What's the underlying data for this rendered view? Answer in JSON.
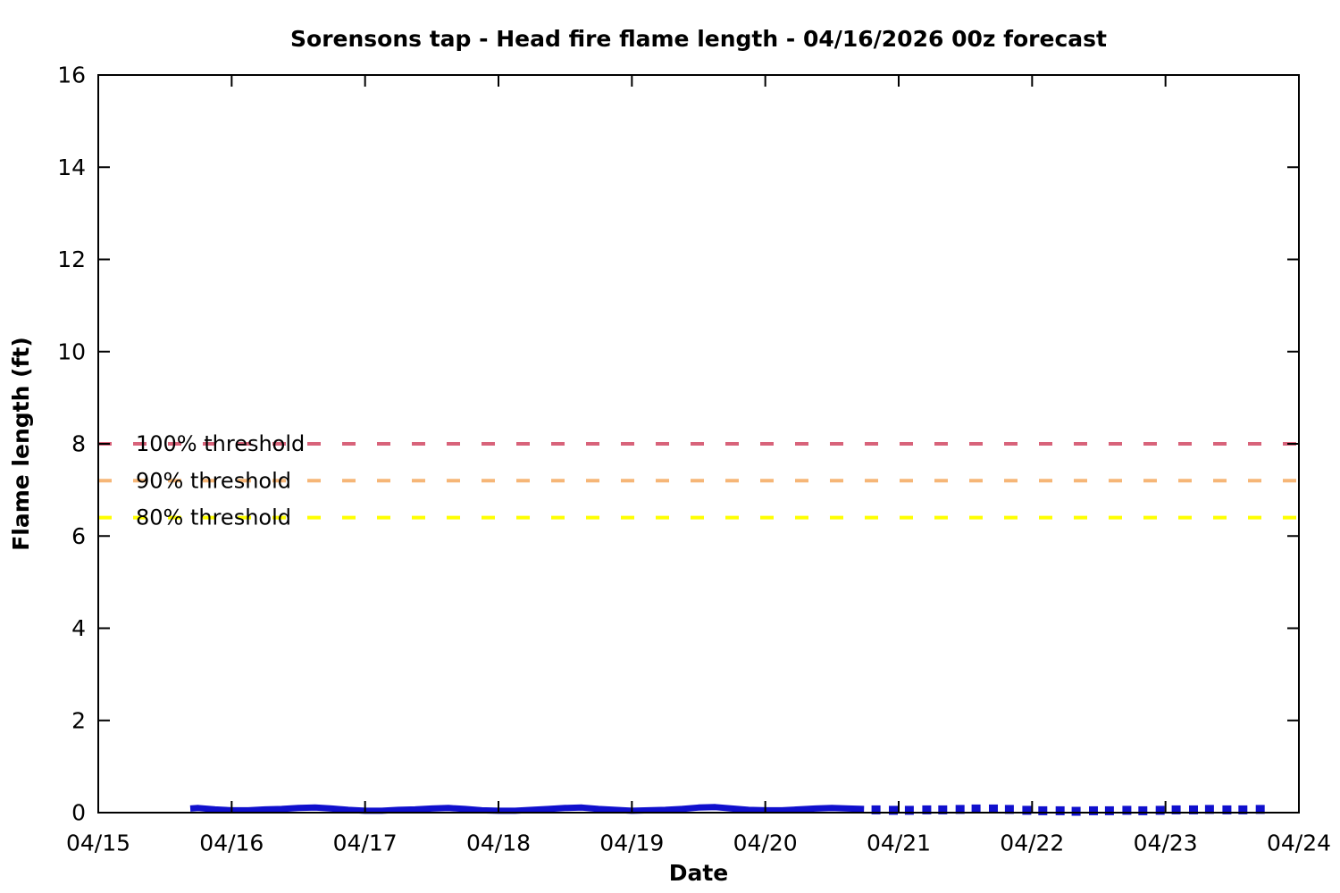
{
  "chart_data": {
    "type": "line",
    "title": "Sorensons tap - Head fire flame length - 04/16/2026 00z forecast",
    "xlabel": "Date",
    "ylabel": "Flame length (ft)",
    "x_tick_labels": [
      "04/15",
      "04/16",
      "04/17",
      "04/18",
      "04/19",
      "04/20",
      "04/21",
      "04/22",
      "04/23",
      "04/24"
    ],
    "x_span_days": 9,
    "x_unit": "days_after_04_15",
    "y_ticks": [
      0,
      2,
      4,
      6,
      8,
      10,
      12,
      14,
      16
    ],
    "ylim": [
      0,
      16
    ],
    "grid": false,
    "legend_position": "inline-left-labels",
    "axis_color": "#000000",
    "thresholds": [
      {
        "label": "100% threshold",
        "value": 8.0,
        "color": "#d8637a"
      },
      {
        "label": "90% threshold",
        "value": 7.2,
        "color": "#f6b677"
      },
      {
        "label": "80% threshold",
        "value": 6.4,
        "color": "#ffff00"
      }
    ],
    "series": [
      {
        "name": "flame-length-forecast-solid",
        "style": "solid-thick-line",
        "color": "#1010cd",
        "line_width": 7,
        "points": [
          [
            0.69,
            0.09
          ],
          [
            0.75,
            0.1
          ],
          [
            0.875,
            0.07
          ],
          [
            1.0,
            0.05
          ],
          [
            1.125,
            0.05
          ],
          [
            1.25,
            0.07
          ],
          [
            1.375,
            0.08
          ],
          [
            1.5,
            0.1
          ],
          [
            1.625,
            0.11
          ],
          [
            1.75,
            0.09
          ],
          [
            1.875,
            0.06
          ],
          [
            2.0,
            0.04
          ],
          [
            2.125,
            0.04
          ],
          [
            2.25,
            0.06
          ],
          [
            2.375,
            0.07
          ],
          [
            2.5,
            0.09
          ],
          [
            2.625,
            0.1
          ],
          [
            2.75,
            0.08
          ],
          [
            2.875,
            0.05
          ],
          [
            3.0,
            0.04
          ],
          [
            3.125,
            0.04
          ],
          [
            3.25,
            0.06
          ],
          [
            3.375,
            0.08
          ],
          [
            3.5,
            0.1
          ],
          [
            3.625,
            0.11
          ],
          [
            3.75,
            0.08
          ],
          [
            3.875,
            0.06
          ],
          [
            4.0,
            0.04
          ],
          [
            4.125,
            0.05
          ],
          [
            4.25,
            0.06
          ],
          [
            4.375,
            0.08
          ],
          [
            4.5,
            0.11
          ],
          [
            4.625,
            0.12
          ],
          [
            4.75,
            0.09
          ],
          [
            4.875,
            0.06
          ],
          [
            5.0,
            0.05
          ],
          [
            5.125,
            0.05
          ],
          [
            5.25,
            0.07
          ],
          [
            5.375,
            0.09
          ],
          [
            5.5,
            0.1
          ],
          [
            5.625,
            0.09
          ],
          [
            5.74,
            0.08
          ]
        ]
      },
      {
        "name": "flame-length-forecast-extended-dots",
        "style": "square-markers",
        "color": "#1010cd",
        "marker_size": 10,
        "points": [
          [
            5.83,
            0.06
          ],
          [
            5.96,
            0.05
          ],
          [
            6.08,
            0.05
          ],
          [
            6.21,
            0.06
          ],
          [
            6.33,
            0.06
          ],
          [
            6.46,
            0.07
          ],
          [
            6.58,
            0.08
          ],
          [
            6.71,
            0.08
          ],
          [
            6.83,
            0.07
          ],
          [
            6.96,
            0.05
          ],
          [
            7.08,
            0.04
          ],
          [
            7.21,
            0.04
          ],
          [
            7.33,
            0.03
          ],
          [
            7.46,
            0.04
          ],
          [
            7.58,
            0.04
          ],
          [
            7.71,
            0.05
          ],
          [
            7.83,
            0.04
          ],
          [
            7.96,
            0.05
          ],
          [
            8.08,
            0.06
          ],
          [
            8.21,
            0.06
          ],
          [
            8.33,
            0.07
          ],
          [
            8.46,
            0.06
          ],
          [
            8.58,
            0.06
          ],
          [
            8.71,
            0.07
          ]
        ]
      }
    ]
  }
}
